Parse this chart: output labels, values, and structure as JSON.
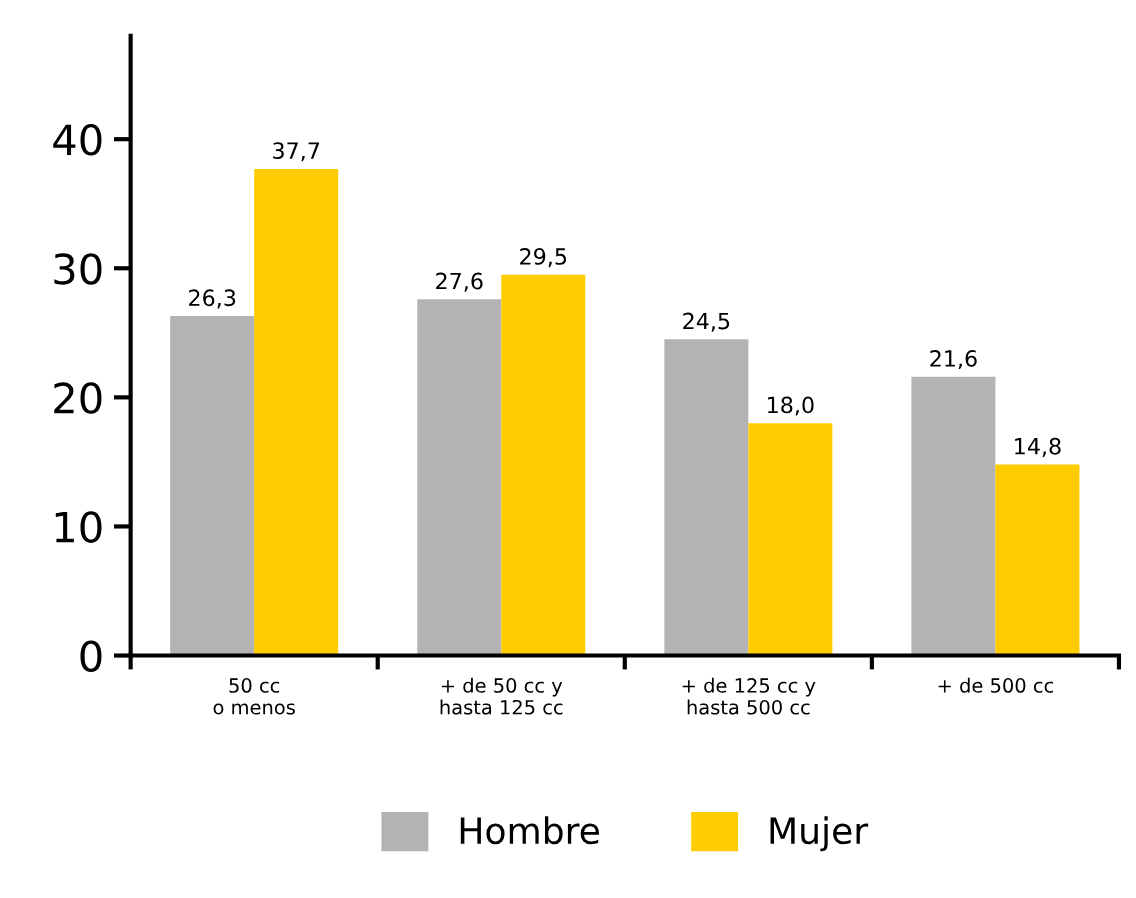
{
  "chart_data": {
    "type": "bar",
    "categories": [
      "50 cc\no menos",
      "+ de 50 cc y\nhasta 125 cc",
      "+ de 125 cc y\nhasta 500 cc",
      "+ de 500 cc"
    ],
    "series": [
      {
        "name": "Hombre",
        "color": "#b3b3b3",
        "values": [
          26.3,
          27.6,
          24.5,
          21.6
        ],
        "value_labels": [
          "26,3",
          "27,6",
          "24,5",
          "21,6"
        ]
      },
      {
        "name": "Mujer",
        "color": "#ffcc00",
        "values": [
          37.7,
          29.5,
          18.0,
          14.8
        ],
        "value_labels": [
          "37,7",
          "29,5",
          "18,0",
          "14,8"
        ]
      }
    ],
    "ylim": [
      0,
      48
    ],
    "yticks": [
      0,
      10,
      20,
      30,
      40
    ],
    "grid": false,
    "legend": "bottom"
  }
}
